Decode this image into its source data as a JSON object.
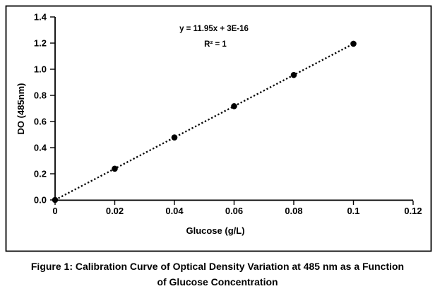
{
  "figure": {
    "caption_line1": "Figure 1: Calibration Curve of Optical Density Variation at 485 nm as a Function",
    "caption_line2": "of Glucose Concentration"
  },
  "chart_data": {
    "type": "scatter",
    "x": [
      0,
      0.02,
      0.04,
      0.06,
      0.08,
      0.1
    ],
    "y": [
      0,
      0.239,
      0.478,
      0.717,
      0.956,
      1.195
    ],
    "trendline": {
      "style": "dotted",
      "slope": 11.95,
      "intercept": "3E-16",
      "equation_label": "y = 11.95x + 3E-16",
      "r_squared_label": "R² = 1"
    },
    "xlabel": "Glucose (g/L)",
    "ylabel": "DO (485nm)",
    "xlim": [
      0,
      0.12
    ],
    "ylim": [
      0,
      1.4
    ],
    "x_ticks": [
      "0",
      "0.02",
      "0.04",
      "0.06",
      "0.08",
      "0.1",
      "0.12"
    ],
    "y_ticks": [
      "0.0",
      "0.2",
      "0.4",
      "0.6",
      "0.8",
      "1.0",
      "1.2",
      "1.4"
    ],
    "grid": false,
    "legend": "none",
    "marker_color": "#000000",
    "line_color": "#000000",
    "frame_color": "#000000",
    "background_color": "#ffffff"
  }
}
